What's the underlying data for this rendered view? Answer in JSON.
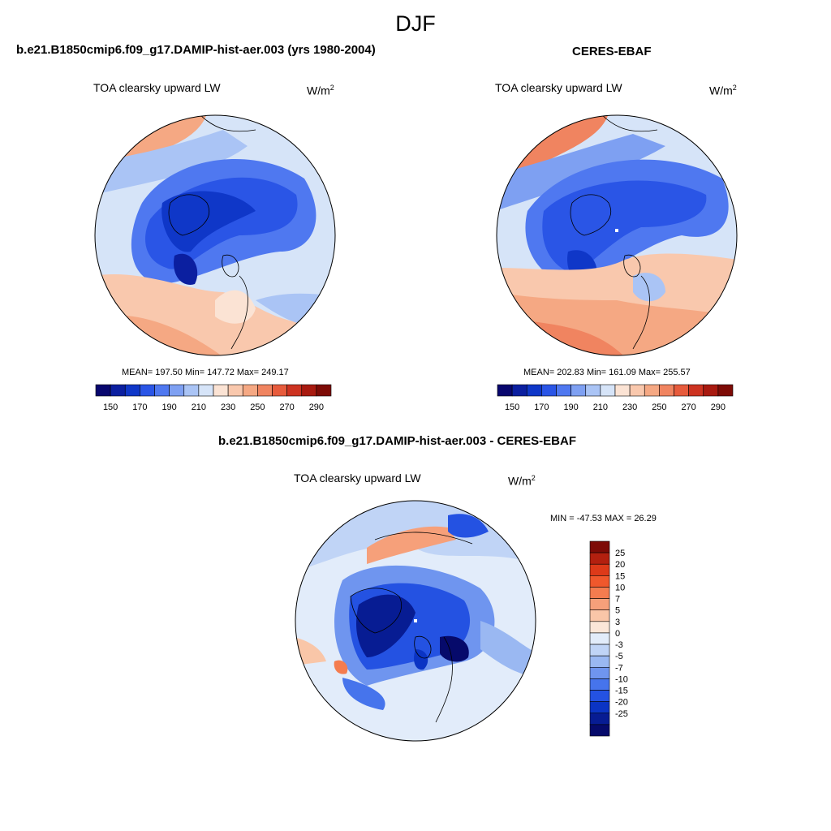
{
  "figure": {
    "season": "DJF"
  },
  "panels": {
    "model": {
      "case": "b.e21.B1850cmip6.f09_g17.DAMIP-hist-aer.003 (yrs 1980-2004)",
      "variable": "TOA clearsky upward LW",
      "units_base": "W/m",
      "units_exp": "2",
      "stats": "MEAN= 197.50  Min= 147.72  Max= 249.17"
    },
    "obs": {
      "case": "CERES-EBAF",
      "variable": "TOA clearsky upward LW",
      "units_base": "W/m",
      "units_exp": "2",
      "stats": "MEAN= 202.83  Min= 161.09  Max= 255.57"
    },
    "diff": {
      "case": "b.e21.B1850cmip6.f09_g17.DAMIP-hist-aer.003 - CERES-EBAF",
      "variable": "TOA clearsky upward LW",
      "units_base": "W/m",
      "units_exp": "2",
      "stats": "MIN = -47.53 MAX =  26.29"
    }
  },
  "chart_data": [
    {
      "type": "heatmap",
      "projection": "north polar stereographic",
      "title": "TOA clearsky upward LW",
      "units": "W/m2",
      "mean": 197.5,
      "min": 147.72,
      "max": 249.17,
      "colorbar_ticks": [
        150,
        170,
        190,
        210,
        230,
        250,
        270,
        290
      ],
      "colorbar_colors": [
        "#08076e",
        "#0b1fa0",
        "#0f37c8",
        "#2a55e6",
        "#4f78f0",
        "#7ea0f2",
        "#aac4f5",
        "#d6e4f8",
        "#fbe3d4",
        "#f9c8ad",
        "#f5a883",
        "#f08460",
        "#e75b3c",
        "#cd3321",
        "#a81a10",
        "#7d0b06"
      ]
    },
    {
      "type": "heatmap",
      "projection": "north polar stereographic",
      "title": "TOA clearsky upward LW",
      "units": "W/m2",
      "mean": 202.83,
      "min": 161.09,
      "max": 255.57,
      "colorbar_ticks": [
        150,
        170,
        190,
        210,
        230,
        250,
        270,
        290
      ],
      "colorbar_colors": [
        "#08076e",
        "#0b1fa0",
        "#0f37c8",
        "#2a55e6",
        "#4f78f0",
        "#7ea0f2",
        "#aac4f5",
        "#d6e4f8",
        "#fbe3d4",
        "#f9c8ad",
        "#f5a883",
        "#f08460",
        "#e75b3c",
        "#cd3321",
        "#a81a10",
        "#7d0b06"
      ]
    },
    {
      "type": "heatmap",
      "projection": "north polar stereographic",
      "title": "TOA clearsky upward LW",
      "units": "W/m2",
      "min": -47.53,
      "max": 26.29,
      "colorbar_ticks": [
        25,
        20,
        15,
        10,
        7,
        5,
        3,
        0,
        -3,
        -5,
        -7,
        -10,
        -15,
        -20,
        -25
      ],
      "colorbar_colors": [
        "#7d0b06",
        "#b3200f",
        "#dd3a19",
        "#f0582c",
        "#f47c4f",
        "#f6a07a",
        "#f9c6a8",
        "#fbe6d8",
        "#e2ecfa",
        "#c0d4f6",
        "#9ab8f2",
        "#6f95ef",
        "#4674ec",
        "#2452e2",
        "#0b34c4",
        "#071c93",
        "#060a6b"
      ]
    }
  ]
}
